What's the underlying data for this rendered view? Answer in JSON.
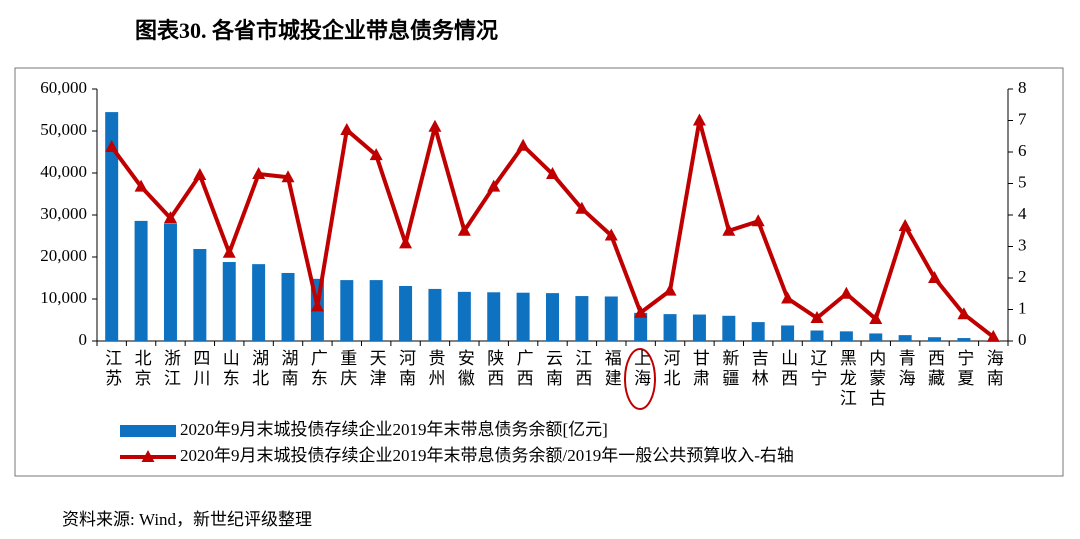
{
  "title": "图表30. 各省市城投企业带息债务情况",
  "source": "资料来源: Wind，新世纪评级整理",
  "chart_data": {
    "type": "bar-line",
    "categories": [
      "江苏",
      "北京",
      "浙江",
      "四川",
      "山东",
      "湖北",
      "湖南",
      "广东",
      "重庆",
      "天津",
      "河南",
      "贵州",
      "安徽",
      "陕西",
      "广西",
      "云南",
      "江西",
      "福建",
      "上海",
      "河北",
      "甘肃",
      "新疆",
      "吉林",
      "山西",
      "辽宁",
      "黑龙江",
      "内蒙古",
      "青海",
      "西藏",
      "宁夏",
      "海南"
    ],
    "series": [
      {
        "name": "2020年9月末城投债存续企业2019年末带息债务余额[亿元]",
        "type": "bar",
        "color": "#0e72c1",
        "values": [
          54500,
          28600,
          28000,
          21900,
          18800,
          18300,
          16200,
          14800,
          14500,
          14500,
          13100,
          12400,
          11700,
          11600,
          11500,
          11400,
          10700,
          10600,
          6700,
          6400,
          6300,
          6000,
          4500,
          3700,
          2500,
          2300,
          1800,
          1400,
          900,
          700,
          100
        ]
      },
      {
        "name": "2020年9月末城投债存续企业2019年末带息债务余额/2019年一般公共预算收入-右轴",
        "type": "line",
        "axis": "y2",
        "color": "#c00000",
        "values": [
          6.16,
          4.9,
          3.9,
          5.27,
          2.8,
          5.3,
          5.2,
          1.1,
          6.7,
          5.9,
          3.1,
          6.8,
          3.5,
          4.9,
          6.2,
          5.3,
          4.2,
          3.35,
          0.9,
          1.6,
          7.0,
          3.5,
          3.8,
          1.35,
          0.73,
          1.5,
          0.7,
          3.65,
          2.0,
          0.85,
          0.13
        ]
      }
    ],
    "ylim": [
      0,
      60000
    ],
    "yticks": [
      0,
      {
        "value": 10000,
        "label": "10,000"
      },
      {
        "value": 20000,
        "label": "20,000"
      },
      {
        "value": 30000,
        "label": "30,000"
      },
      {
        "value": 40000,
        "label": "40,000"
      },
      {
        "value": 50000,
        "label": "50,000"
      },
      {
        "value": 60000,
        "label": "60,000"
      }
    ],
    "y2lim": [
      0,
      8
    ],
    "y2ticks": [
      0,
      1,
      2,
      3,
      4,
      5,
      6,
      7,
      8
    ],
    "grid": false
  }
}
